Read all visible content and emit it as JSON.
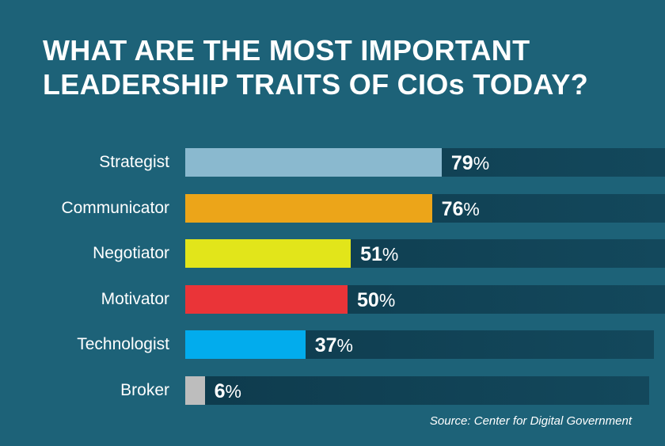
{
  "header": {
    "title_line1": "WHAT ARE THE MOST IMPORTANT",
    "title_line2": "LEADERSHIP TRAITS OF CIOs TODAY?"
  },
  "chart_data": {
    "type": "bar",
    "orientation": "horizontal",
    "title": "WHAT ARE THE MOST IMPORTANT LEADERSHIP TRAITS OF CIOs TODAY?",
    "categories": [
      "Strategist",
      "Communicator",
      "Negotiator",
      "Motivator",
      "Technologist",
      "Broker"
    ],
    "values": [
      79,
      76,
      51,
      50,
      37,
      6
    ],
    "value_suffix": "%",
    "colors": [
      "#8ab9cf",
      "#eca519",
      "#e2e51a",
      "#ea3438",
      "#02aced",
      "#bdbdbd"
    ],
    "xlim": [
      0,
      100
    ],
    "xlabel": "",
    "ylabel": ""
  },
  "footer": {
    "source": "Source: Center for Digital Government"
  }
}
